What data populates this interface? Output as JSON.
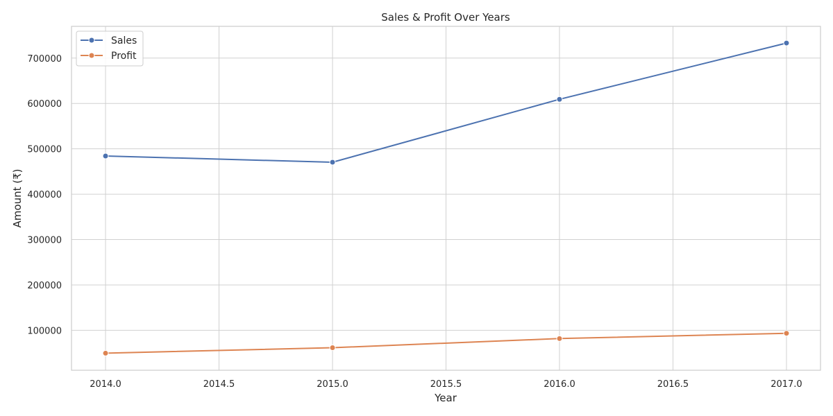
{
  "chart_data": {
    "type": "line",
    "title": "Sales & Profit Over Years",
    "xlabel": "Year",
    "ylabel": "Amount (₹)",
    "x": [
      2014,
      2015,
      2016,
      2017
    ],
    "xlim": [
      2013.85,
      2017.15
    ],
    "ylim": [
      12000,
      770000
    ],
    "xticks": [
      "2014.0",
      "2014.5",
      "2015.0",
      "2015.5",
      "2016.0",
      "2016.5",
      "2017.0"
    ],
    "xtick_values": [
      2014.0,
      2014.5,
      2015.0,
      2015.5,
      2016.0,
      2016.5,
      2017.0
    ],
    "yticks": [
      "100000",
      "200000",
      "300000",
      "400000",
      "500000",
      "600000",
      "700000"
    ],
    "ytick_values": [
      100000,
      200000,
      300000,
      400000,
      500000,
      600000,
      700000
    ],
    "grid": true,
    "legend": "top-left",
    "series": [
      {
        "name": "Sales",
        "color": "#4c72b0",
        "values": [
          484247,
          470533,
          609206,
          733215
        ]
      },
      {
        "name": "Profit",
        "color": "#dd8452",
        "values": [
          49544,
          61619,
          81795,
          93439
        ]
      }
    ]
  }
}
